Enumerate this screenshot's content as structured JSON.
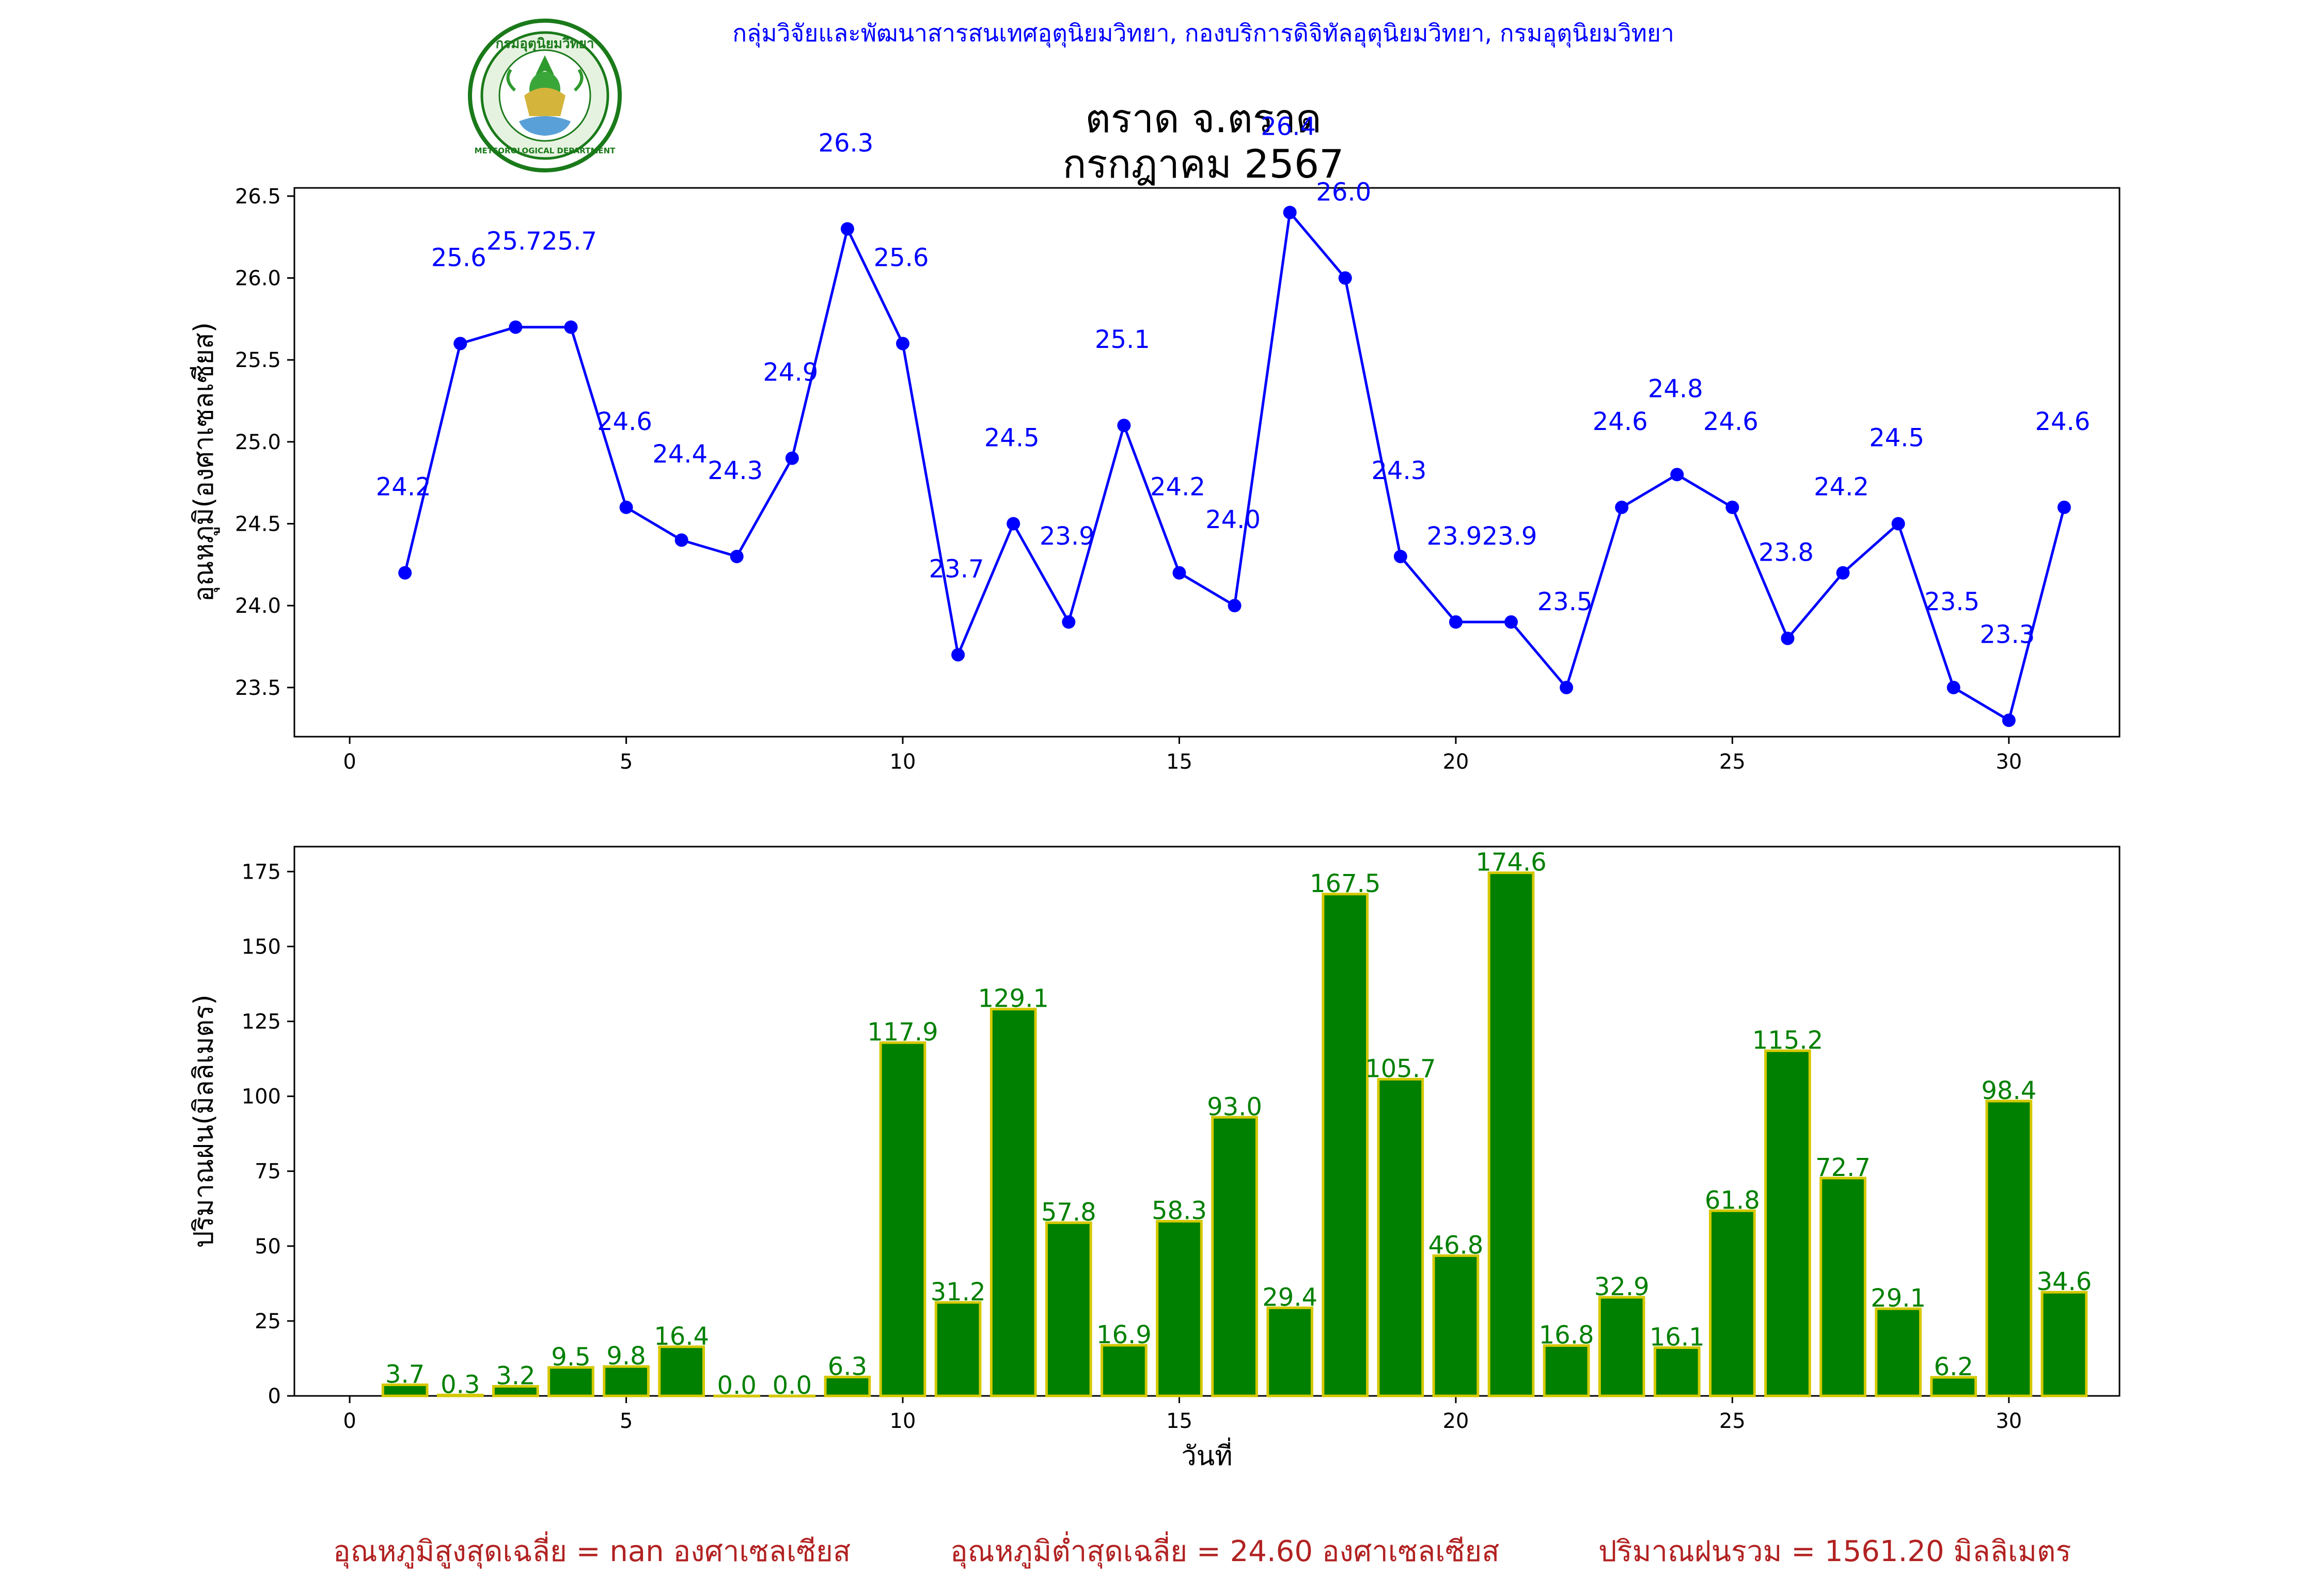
{
  "header": {
    "organization": "กลุ่มวิจัยและพัฒนาสารสนเทศอุตุนิยมวิทยา, กองบริการดิจิทัลอุตุนิยมวิทยา, กรมอุตุนิยมวิทยา",
    "title_line1": "ตราด จ.ตราด",
    "title_line2": "กรกฎาคม 2567",
    "logo_icon": "meteorological-department-seal",
    "logo_text_top": "กรมอุตุนิยมวิทยา",
    "logo_text_bottom": "METEOROLOGICAL DEPARTMENT"
  },
  "footer": {
    "avg_max": "อุณหภูมิสูงสุดเฉลี่ย = nan องศาเซลเซียส",
    "avg_min": "อุณหภูมิต่ำสุดเฉลี่ย = 24.60 องศาเซลเซียส",
    "total_rain": "ปริมาณฝนรวม = 1561.20 มิลลิเมตร"
  },
  "colors": {
    "temp_line": "#0000ff",
    "rain_bar": "#008000",
    "rain_edge": "#d4c800",
    "footer_text": "#b22222"
  },
  "chart_data": [
    {
      "type": "line",
      "ylabel": "อุณหภูมิ(องศาเซลเซียส)",
      "xlabel": "",
      "xlim": [
        -1.0,
        32.0
      ],
      "ylim": [
        23.2,
        26.55
      ],
      "xticks": [
        0,
        5,
        10,
        15,
        20,
        25,
        30
      ],
      "yticks": [
        23.5,
        24.0,
        24.5,
        25.0,
        25.5,
        26.0,
        26.5
      ],
      "ytick_labels": [
        "23.5",
        "24.0",
        "24.5",
        "25.0",
        "25.5",
        "26.0",
        "26.5"
      ],
      "x": [
        1,
        2,
        3,
        4,
        5,
        6,
        7,
        8,
        9,
        10,
        11,
        12,
        13,
        14,
        15,
        16,
        17,
        18,
        19,
        20,
        21,
        22,
        23,
        24,
        25,
        26,
        27,
        28,
        29,
        30,
        31
      ],
      "y": [
        24.2,
        25.6,
        25.7,
        25.7,
        24.6,
        24.4,
        24.3,
        24.9,
        26.3,
        25.6,
        23.7,
        24.5,
        23.9,
        25.1,
        24.2,
        24.0,
        26.4,
        26.0,
        24.3,
        23.9,
        23.9,
        23.5,
        24.6,
        24.8,
        24.6,
        23.8,
        24.2,
        24.5,
        23.5,
        23.3,
        24.6
      ],
      "labels": [
        "24.2",
        "25.6",
        "25.7",
        "25.7",
        "24.6",
        "24.4",
        "24.3",
        "24.9",
        "26.3",
        "25.6",
        "23.7",
        "24.5",
        "23.9",
        "25.1",
        "24.2",
        "24.0",
        "26.4",
        "26.0",
        "24.3",
        "23.9",
        "23.9",
        "23.5",
        "24.6",
        "24.8",
        "24.6",
        "23.8",
        "24.2",
        "24.5",
        "23.5",
        "23.3",
        "24.6"
      ],
      "grid": false
    },
    {
      "type": "bar",
      "ylabel": "ปริมาณฝน(มิลลิเมตร)",
      "xlabel": "วันที่",
      "xlim": [
        -1.0,
        32.0
      ],
      "ylim": [
        0,
        183.33
      ],
      "xticks": [
        0,
        5,
        10,
        15,
        20,
        25,
        30
      ],
      "yticks": [
        0,
        25,
        50,
        75,
        100,
        125,
        150,
        175
      ],
      "ytick_labels": [
        "0",
        "25",
        "50",
        "75",
        "100",
        "125",
        "150",
        "175"
      ],
      "x": [
        1,
        2,
        3,
        4,
        5,
        6,
        7,
        8,
        9,
        10,
        11,
        12,
        13,
        14,
        15,
        16,
        17,
        18,
        19,
        20,
        21,
        22,
        23,
        24,
        25,
        26,
        27,
        28,
        29,
        30,
        31
      ],
      "values": [
        3.7,
        0.3,
        3.2,
        9.5,
        9.8,
        16.4,
        0.0,
        0.0,
        6.3,
        117.9,
        31.2,
        129.1,
        57.8,
        16.9,
        58.3,
        93.0,
        29.4,
        167.5,
        105.7,
        46.8,
        174.6,
        16.8,
        32.9,
        16.1,
        61.8,
        115.2,
        72.7,
        29.1,
        6.2,
        98.4,
        34.6
      ],
      "labels": [
        "3.7",
        "0.3",
        "3.2",
        "9.5",
        "9.8",
        "16.4",
        "0.0",
        "0.0",
        "6.3",
        "117.9",
        "31.2",
        "129.1",
        "57.8",
        "16.9",
        "58.3",
        "93.0",
        "29.4",
        "167.5",
        "105.7",
        "46.8",
        "174.6",
        "16.8",
        "32.9",
        "16.1",
        "61.8",
        "115.2",
        "72.7",
        "29.1",
        "6.2",
        "98.4",
        "34.6"
      ],
      "grid": false
    }
  ]
}
